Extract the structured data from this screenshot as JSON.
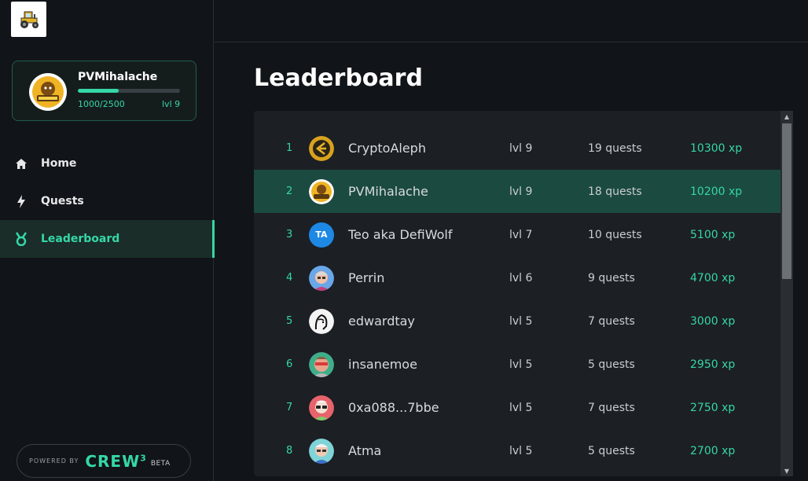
{
  "profile": {
    "name": "PVMihalache",
    "xp_text": "1000/2500",
    "xp_progress": 0.4,
    "level": "lvl 9"
  },
  "nav": {
    "items": [
      {
        "label": "Home",
        "icon": "home-icon"
      },
      {
        "label": "Quests",
        "icon": "lightning-icon"
      },
      {
        "label": "Leaderboard",
        "icon": "medal-icon",
        "active": true
      }
    ]
  },
  "footer": {
    "powered_by": "POWERED BY",
    "brand": "CREW",
    "brand_sup": "3",
    "beta": "BETA"
  },
  "page": {
    "title": "Leaderboard"
  },
  "leaderboard": {
    "rows": [
      {
        "rank": "1",
        "name": "CryptoAleph",
        "level": "lvl 9",
        "quests": "19 quests",
        "xp": "10300 xp"
      },
      {
        "rank": "2",
        "name": "PVMihalache",
        "level": "lvl 9",
        "quests": "18 quests",
        "xp": "10200 xp",
        "me": true
      },
      {
        "rank": "3",
        "name": "Teo aka DefiWolf",
        "level": "lvl 7",
        "quests": "10 quests",
        "xp": "5100 xp",
        "initials": "TA"
      },
      {
        "rank": "4",
        "name": "Perrin",
        "level": "lvl 6",
        "quests": "9 quests",
        "xp": "4700 xp"
      },
      {
        "rank": "5",
        "name": "edwardtay",
        "level": "lvl 5",
        "quests": "7 quests",
        "xp": "3000 xp"
      },
      {
        "rank": "6",
        "name": "insanemoe",
        "level": "lvl 5",
        "quests": "5 quests",
        "xp": "2950 xp"
      },
      {
        "rank": "7",
        "name": "0xa088...7bbe",
        "level": "lvl 5",
        "quests": "7 quests",
        "xp": "2750 xp"
      },
      {
        "rank": "8",
        "name": "Atma",
        "level": "lvl 5",
        "quests": "5 quests",
        "xp": "2700 xp"
      }
    ]
  },
  "colors": {
    "accent": "#35d7a6",
    "background": "#111418",
    "panel": "#1c1f24",
    "highlight_row": "#1b4a40"
  }
}
